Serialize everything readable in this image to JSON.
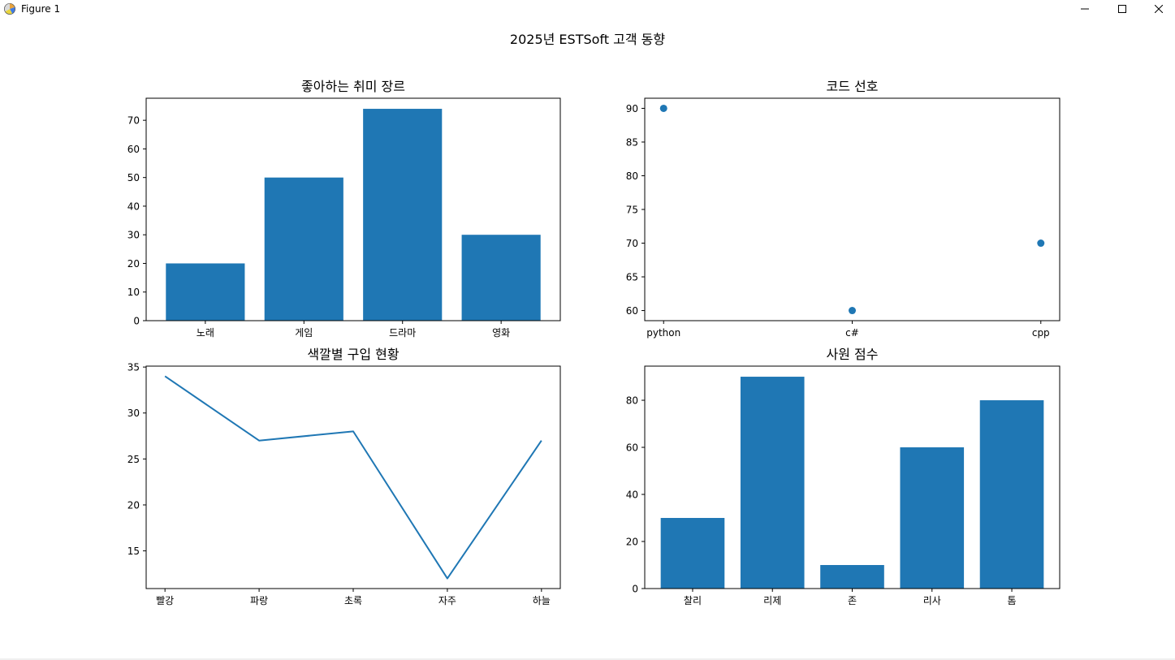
{
  "window": {
    "title": "Figure 1"
  },
  "figure": {
    "suptitle": "2025년 ESTSoft 고객 동향"
  },
  "colors": {
    "series": "#1f77b4",
    "axes": "#000000",
    "background": "#ffffff"
  },
  "icons": {
    "app": "matplotlib-figure-icon",
    "minimize": "minimize-icon",
    "maximize": "maximize-icon",
    "close": "close-icon"
  },
  "chart_data": [
    {
      "type": "bar",
      "title": "좋아하는 취미 장르",
      "categories": [
        "노래",
        "게임",
        "드라마",
        "영화"
      ],
      "values": [
        20,
        50,
        74,
        30
      ],
      "ylim": [
        0,
        77.7
      ],
      "yticks": [
        0,
        10,
        20,
        30,
        40,
        50,
        60,
        70
      ],
      "xlabel": "",
      "ylabel": "",
      "grid": false
    },
    {
      "type": "scatter",
      "title": "코드 선호",
      "categories": [
        "python",
        "c#",
        "cpp"
      ],
      "values": [
        90,
        60,
        70
      ],
      "ylim": [
        58.5,
        91.5
      ],
      "yticks": [
        60,
        65,
        70,
        75,
        80,
        85,
        90
      ],
      "xlabel": "",
      "ylabel": "",
      "grid": false
    },
    {
      "type": "line",
      "title": "색깔별 구입 현황",
      "categories": [
        "빨강",
        "파랑",
        "초록",
        "자주",
        "하늘"
      ],
      "values": [
        34,
        27,
        28,
        12,
        27
      ],
      "ylim": [
        10.9,
        35.1
      ],
      "yticks": [
        15,
        20,
        25,
        30,
        35
      ],
      "xlabel": "",
      "ylabel": "",
      "grid": false
    },
    {
      "type": "bar",
      "title": "사원 점수",
      "categories": [
        "찰리",
        "리제",
        "존",
        "리사",
        "톰"
      ],
      "values": [
        30,
        90,
        10,
        60,
        80
      ],
      "ylim": [
        0,
        94.5
      ],
      "yticks": [
        0,
        20,
        40,
        60,
        80
      ],
      "xlabel": "",
      "ylabel": "",
      "grid": false
    }
  ]
}
